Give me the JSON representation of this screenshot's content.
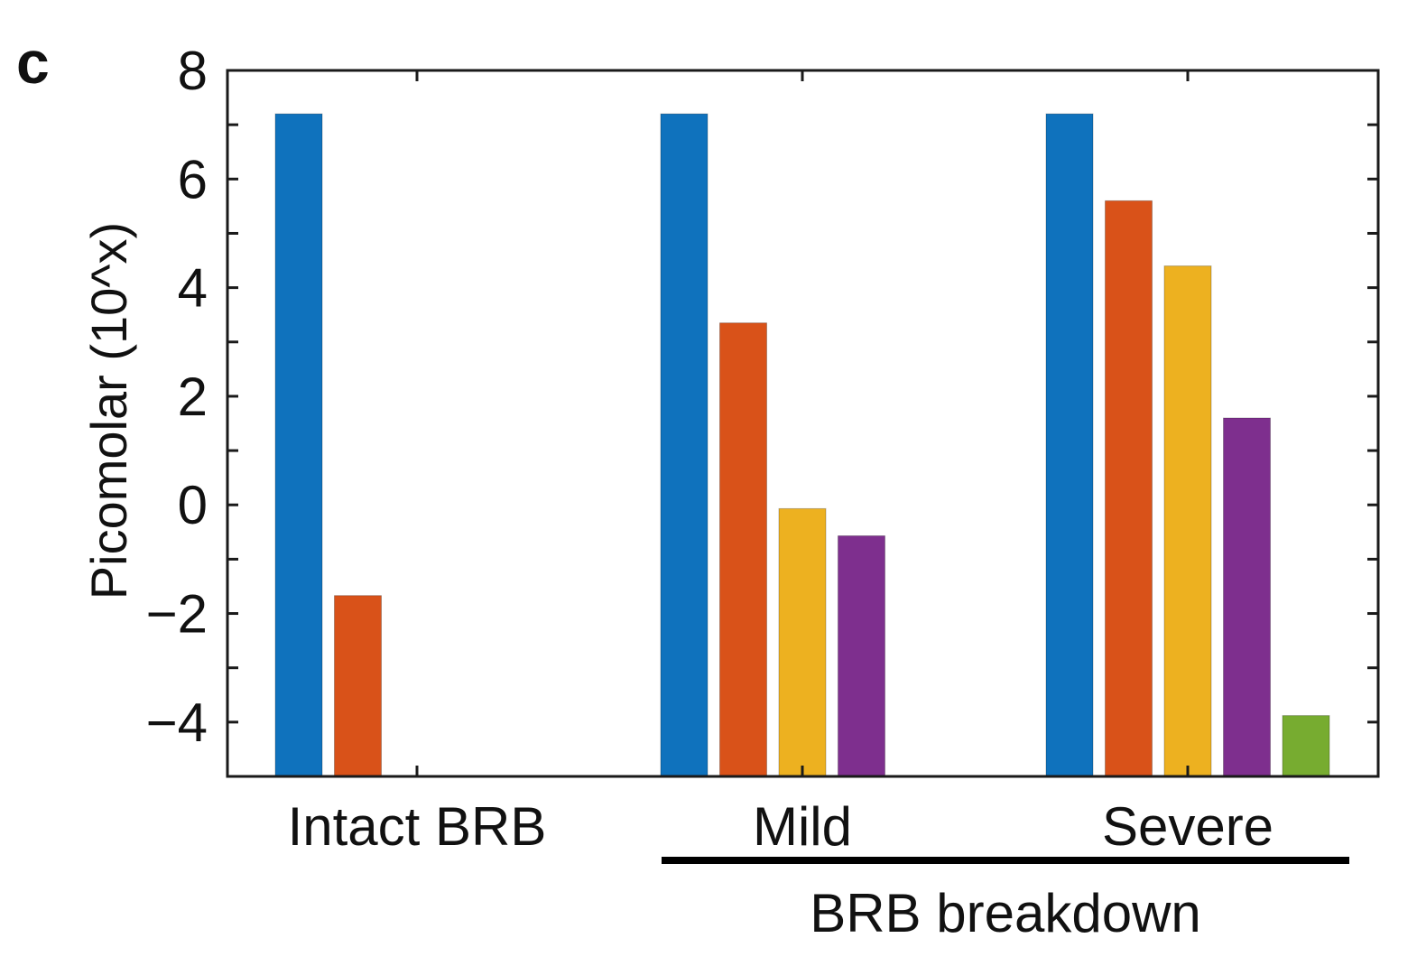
{
  "panel_label": "c",
  "chart_data": {
    "type": "bar",
    "categories": [
      "Intact BRB",
      "Mild",
      "Severe"
    ],
    "group_label": "BRB breakdown",
    "ylabel": "Picomolar (10^x)",
    "xlabel": "",
    "ylim": [
      -5,
      8
    ],
    "yticks": [
      -4,
      -2,
      0,
      2,
      4,
      6,
      8
    ],
    "grid": false,
    "series": [
      {
        "color": "#0f72bd",
        "values": [
          7.2,
          7.2,
          7.2
        ]
      },
      {
        "color": "#d95219",
        "values": [
          -1.67,
          3.35,
          5.6
        ]
      },
      {
        "color": "#edb120",
        "values": [
          null,
          -0.07,
          4.4
        ]
      },
      {
        "color": "#7e2f8e",
        "values": [
          null,
          -0.57,
          1.6
        ]
      },
      {
        "color": "#77ac30",
        "values": [
          null,
          null,
          -3.88
        ]
      }
    ]
  }
}
